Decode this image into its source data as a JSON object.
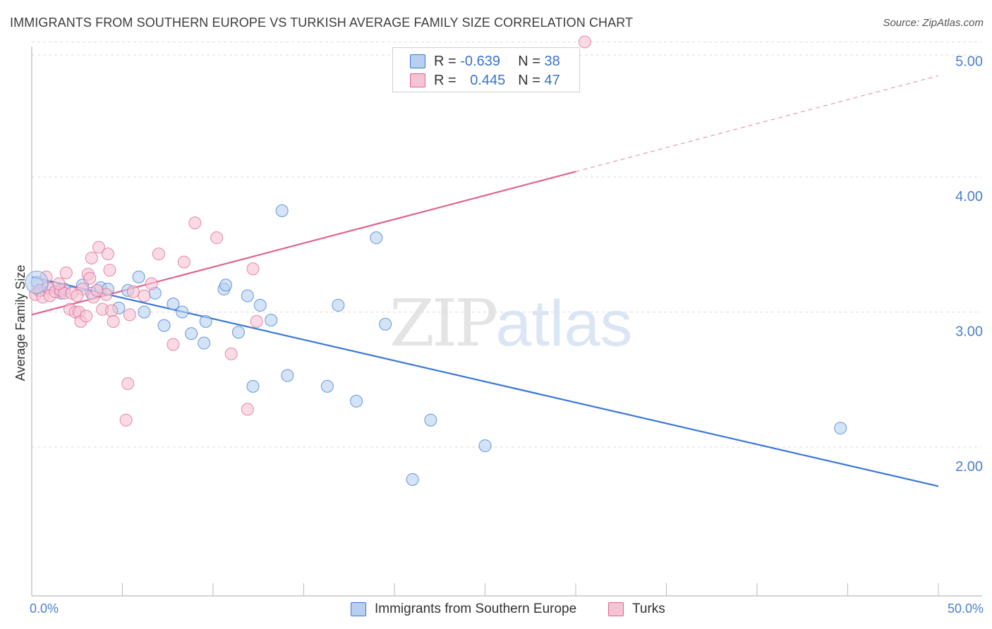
{
  "title": "IMMIGRANTS FROM SOUTHERN EUROPE VS TURKISH AVERAGE FAMILY SIZE CORRELATION CHART",
  "source": "Source: ZipAtlas.com",
  "watermark": {
    "zip": "ZIP",
    "atlas": "atlas"
  },
  "legend": {
    "rows": [
      {
        "r_label": "R = ",
        "r_value": "-0.639",
        "n_label": "N = ",
        "n_value": "38"
      },
      {
        "r_label": "R = ",
        "r_value": "0.445",
        "n_label": "N = ",
        "n_value": "47"
      }
    ]
  },
  "colors": {
    "blue": "#3a78d4",
    "blue_fill": "#b8d0f0",
    "pink": "#e0648c",
    "pink_fill": "#f6c3d4",
    "grid": "#dcdcdc",
    "axis_text": "#4a7fd0"
  },
  "chart_data": {
    "type": "scatter",
    "title": "IMMIGRANTS FROM SOUTHERN EUROPE VS TURKISH AVERAGE FAMILY SIZE CORRELATION CHART",
    "xlabel": "",
    "ylabel": "Average Family Size",
    "xlim": [
      0,
      50
    ],
    "ylim": [
      1.0,
      5.1
    ],
    "x_tick_labels": [
      "0.0%",
      "50.0%"
    ],
    "y_ticks": [
      2.0,
      3.0,
      4.0,
      5.0
    ],
    "y_tick_labels": [
      "2.00",
      "3.00",
      "4.00",
      "5.00"
    ],
    "grid": "horizontal dashed",
    "series": [
      {
        "name": "Immigrants from Southern Europe",
        "color": "#3a78d4",
        "r": -0.639,
        "n": 38,
        "trend": {
          "x0": 0.0,
          "y0": 3.26,
          "x1": 50.0,
          "y1": 1.71
        },
        "points": [
          [
            0.3,
            3.22
          ],
          [
            1.2,
            3.18
          ],
          [
            1.8,
            3.17
          ],
          [
            2.8,
            3.2
          ],
          [
            3.3,
            3.14
          ],
          [
            3.8,
            3.18
          ],
          [
            4.2,
            3.17
          ],
          [
            4.8,
            3.03
          ],
          [
            5.3,
            3.16
          ],
          [
            5.9,
            3.26
          ],
          [
            6.2,
            3.0
          ],
          [
            6.8,
            3.14
          ],
          [
            7.3,
            2.9
          ],
          [
            7.8,
            3.06
          ],
          [
            8.3,
            3.0
          ],
          [
            8.8,
            2.84
          ],
          [
            9.5,
            2.77
          ],
          [
            9.6,
            2.93
          ],
          [
            10.6,
            3.17
          ],
          [
            10.7,
            3.2
          ],
          [
            11.4,
            2.85
          ],
          [
            11.9,
            3.12
          ],
          [
            12.2,
            2.45
          ],
          [
            12.6,
            3.05
          ],
          [
            13.2,
            2.94
          ],
          [
            13.8,
            3.75
          ],
          [
            14.1,
            2.53
          ],
          [
            16.3,
            2.45
          ],
          [
            16.9,
            3.05
          ],
          [
            17.9,
            2.34
          ],
          [
            19.0,
            3.55
          ],
          [
            19.5,
            2.91
          ],
          [
            22.0,
            2.2
          ],
          [
            21.0,
            1.76
          ],
          [
            25.0,
            2.01
          ],
          [
            44.6,
            2.14
          ],
          [
            0.5,
            3.16
          ],
          [
            1.6,
            3.14
          ]
        ]
      },
      {
        "name": "Turks",
        "color": "#e0648c",
        "r": 0.445,
        "n": 47,
        "trend": {
          "x0": 0.0,
          "y0": 2.98,
          "x1": 30.0,
          "y1": 4.04,
          "dash_x1": 50.0,
          "dash_y1": 4.75
        },
        "points": [
          [
            0.2,
            3.13
          ],
          [
            0.4,
            3.16
          ],
          [
            0.6,
            3.11
          ],
          [
            0.9,
            3.18
          ],
          [
            1.0,
            3.12
          ],
          [
            1.3,
            3.15
          ],
          [
            1.6,
            3.16
          ],
          [
            1.8,
            3.14
          ],
          [
            1.9,
            3.29
          ],
          [
            2.1,
            3.02
          ],
          [
            2.2,
            3.14
          ],
          [
            2.4,
            3.0
          ],
          [
            2.6,
            3.0
          ],
          [
            2.7,
            2.93
          ],
          [
            2.8,
            3.17
          ],
          [
            3.0,
            2.97
          ],
          [
            3.1,
            3.28
          ],
          [
            3.2,
            3.25
          ],
          [
            3.3,
            3.4
          ],
          [
            3.4,
            3.11
          ],
          [
            3.7,
            3.48
          ],
          [
            3.9,
            3.02
          ],
          [
            4.1,
            3.13
          ],
          [
            4.2,
            3.43
          ],
          [
            4.3,
            3.31
          ],
          [
            4.4,
            3.01
          ],
          [
            4.5,
            2.93
          ],
          [
            5.3,
            2.47
          ],
          [
            5.2,
            2.2
          ],
          [
            5.4,
            2.98
          ],
          [
            5.6,
            3.15
          ],
          [
            6.2,
            3.12
          ],
          [
            6.6,
            3.21
          ],
          [
            7.0,
            3.43
          ],
          [
            7.8,
            2.76
          ],
          [
            8.4,
            3.37
          ],
          [
            9.0,
            3.66
          ],
          [
            10.2,
            3.55
          ],
          [
            11.0,
            2.69
          ],
          [
            11.9,
            2.28
          ],
          [
            12.2,
            3.32
          ],
          [
            12.4,
            2.93
          ],
          [
            30.5,
            5.0
          ],
          [
            0.8,
            3.26
          ],
          [
            1.5,
            3.21
          ],
          [
            2.5,
            3.12
          ],
          [
            3.6,
            3.16
          ]
        ]
      }
    ]
  },
  "bottom_legend": [
    {
      "label": "Immigrants from Southern Europe"
    },
    {
      "label": "Turks"
    }
  ]
}
